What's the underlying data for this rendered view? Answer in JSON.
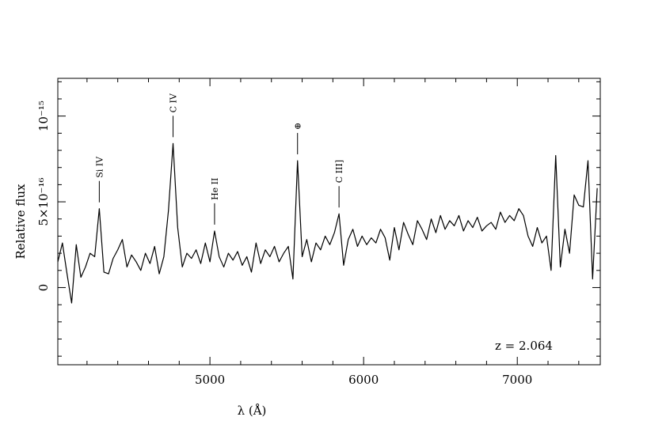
{
  "chart_data": {
    "type": "line",
    "xlabel": "λ (Å)",
    "ylabel": "Relative flux",
    "annotation": "z = 2.064",
    "color": "#000000",
    "xlim": [
      4010,
      7540
    ],
    "ylim": [
      -4.5e-16,
      1.22e-15
    ],
    "xticks": [
      5000,
      6000,
      7000
    ],
    "yticks": [
      0,
      {
        "value": 5e-16,
        "label": "5×10⁻¹⁶"
      },
      {
        "value": 1e-15,
        "label": "10⁻¹⁵"
      }
    ],
    "xminorticks": [
      4200,
      4400,
      4600,
      4800,
      5200,
      5400,
      5600,
      5800,
      6200,
      6400,
      6600,
      6800,
      7200,
      7400
    ],
    "yminorticks": [
      -4e-16,
      -3e-16,
      -2e-16,
      -1e-16,
      1e-16,
      2e-16,
      3e-16,
      4e-16,
      6e-16,
      7e-16,
      8e-16,
      9e-16,
      1.1e-15,
      1.2e-15
    ],
    "lines": [
      {
        "text": "Si IV",
        "x": 4280
      },
      {
        "text": "C IV",
        "x": 4760
      },
      {
        "text": "He II",
        "x": 5030
      },
      {
        "text": "⊕",
        "x": 5570
      },
      {
        "text": "C III]",
        "x": 5840
      }
    ],
    "x": [
      4010,
      4040,
      4070,
      4100,
      4130,
      4160,
      4190,
      4220,
      4250,
      4280,
      4310,
      4340,
      4370,
      4400,
      4430,
      4460,
      4490,
      4520,
      4550,
      4580,
      4610,
      4640,
      4670,
      4700,
      4730,
      4760,
      4790,
      4820,
      4850,
      4880,
      4910,
      4940,
      4970,
      5000,
      5030,
      5060,
      5090,
      5120,
      5150,
      5180,
      5210,
      5240,
      5270,
      5300,
      5330,
      5360,
      5390,
      5420,
      5450,
      5480,
      5510,
      5540,
      5570,
      5600,
      5630,
      5660,
      5690,
      5720,
      5750,
      5780,
      5810,
      5840,
      5870,
      5900,
      5930,
      5960,
      5990,
      6020,
      6050,
      6080,
      6110,
      6140,
      6170,
      6200,
      6230,
      6260,
      6290,
      6320,
      6350,
      6380,
      6410,
      6440,
      6470,
      6500,
      6530,
      6560,
      6590,
      6620,
      6650,
      6680,
      6710,
      6740,
      6770,
      6800,
      6830,
      6860,
      6890,
      6920,
      6950,
      6980,
      7010,
      7040,
      7070,
      7100,
      7130,
      7160,
      7190,
      7220,
      7250,
      7280,
      7310,
      7340,
      7370,
      7400,
      7430,
      7460,
      7490,
      7520
    ],
    "values": [
      1.5e-16,
      2.6e-16,
      8e-17,
      -9e-17,
      2.5e-16,
      6e-17,
      1.2e-16,
      2e-16,
      1.8e-16,
      4.6e-16,
      9e-17,
      8e-17,
      1.7e-16,
      2.2e-16,
      2.8e-16,
      1.2e-16,
      1.9e-16,
      1.5e-16,
      1e-16,
      2e-16,
      1.4e-16,
      2.4e-16,
      8e-17,
      1.8e-16,
      4.5e-16,
      8.4e-16,
      3.5e-16,
      1.2e-16,
      2e-16,
      1.7e-16,
      2.2e-16,
      1.4e-16,
      2.6e-16,
      1.5e-16,
      3.3e-16,
      1.8e-16,
      1.2e-16,
      2e-16,
      1.6e-16,
      2.1e-16,
      1.3e-16,
      1.8e-16,
      9e-17,
      2.6e-16,
      1.4e-16,
      2.2e-16,
      1.8e-16,
      2.4e-16,
      1.5e-16,
      2e-16,
      2.4e-16,
      5e-17,
      7.4e-16,
      1.8e-16,
      2.8e-16,
      1.5e-16,
      2.6e-16,
      2.2e-16,
      3e-16,
      2.5e-16,
      3.2e-16,
      4.3e-16,
      1.3e-16,
      2.8e-16,
      3.4e-16,
      2.4e-16,
      3e-16,
      2.5e-16,
      2.9e-16,
      2.6e-16,
      3.4e-16,
      2.9e-16,
      1.6e-16,
      3.5e-16,
      2.2e-16,
      3.8e-16,
      3.1e-16,
      2.5e-16,
      3.9e-16,
      3.4e-16,
      2.8e-16,
      4e-16,
      3.2e-16,
      4.2e-16,
      3.4e-16,
      3.9e-16,
      3.6e-16,
      4.2e-16,
      3.3e-16,
      3.9e-16,
      3.5e-16,
      4.1e-16,
      3.3e-16,
      3.6e-16,
      3.8e-16,
      3.4e-16,
      4.4e-16,
      3.8e-16,
      4.2e-16,
      3.9e-16,
      4.6e-16,
      4.2e-16,
      3e-16,
      2.4e-16,
      3.5e-16,
      2.6e-16,
      3e-16,
      1e-16,
      7.7e-16,
      1.2e-16,
      3.4e-16,
      2e-16,
      5.4e-16,
      4.8e-16,
      4.7e-16,
      7.4e-16,
      5e-17,
      5.8e-16
    ]
  }
}
